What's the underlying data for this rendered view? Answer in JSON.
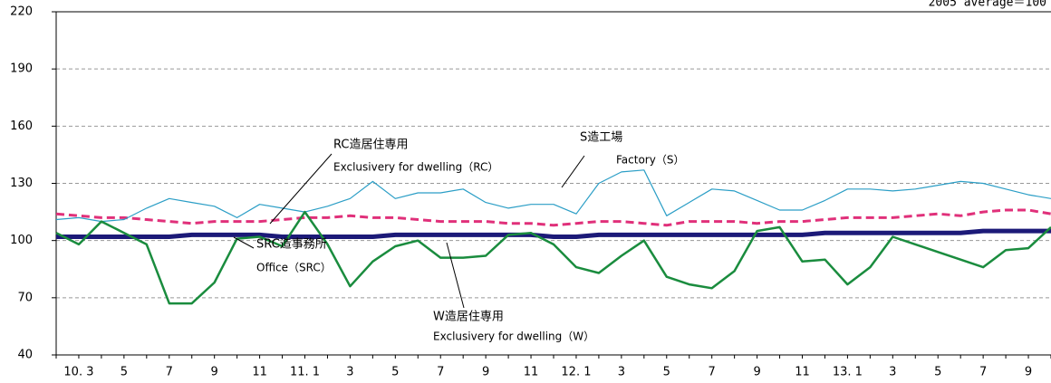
{
  "chart_data": {
    "type": "line",
    "note": "2005 average＝100",
    "categories": [
      null,
      "10. 3",
      null,
      "5",
      null,
      "7",
      null,
      "9",
      null,
      "11",
      null,
      "11. 1",
      null,
      "3",
      null,
      "5",
      null,
      "7",
      null,
      "9",
      null,
      "11",
      null,
      "12. 1",
      null,
      "3",
      null,
      "5",
      null,
      "7",
      null,
      "9",
      null,
      "11",
      null,
      "13. 1",
      null,
      "3",
      null,
      "5",
      null,
      "7",
      null,
      "9",
      null
    ],
    "ylim": [
      40,
      220
    ],
    "yticks": [
      40,
      70,
      100,
      130,
      160,
      190,
      220
    ],
    "grid": true,
    "series": [
      {
        "name": "S造工場",
        "name_en": "Factory（S）",
        "color": "#2b9ec6",
        "line_width": 1.2,
        "dash": false,
        "values": [
          111,
          112,
          110,
          111,
          117,
          122,
          120,
          118,
          112,
          119,
          117,
          115,
          118,
          122,
          131,
          122,
          125,
          125,
          127,
          120,
          117,
          119,
          119,
          114,
          130,
          136,
          137,
          113,
          120,
          127,
          126,
          121,
          116,
          116,
          121,
          127,
          127,
          126,
          127,
          129,
          131,
          130,
          127,
          124,
          122
        ]
      },
      {
        "name": "RC造居住専用",
        "name_en": "Exclusivery for dwelling（RC）",
        "color": "#e0307a",
        "line_width": 3,
        "dash": true,
        "values": [
          114,
          113,
          112,
          112,
          111,
          110,
          109,
          110,
          110,
          110,
          111,
          112,
          112,
          113,
          112,
          112,
          111,
          110,
          110,
          110,
          109,
          109,
          108,
          109,
          110,
          110,
          109,
          108,
          110,
          110,
          110,
          109,
          110,
          110,
          111,
          112,
          112,
          112,
          113,
          114,
          113,
          115,
          116,
          116,
          114
        ]
      },
      {
        "name": "SRC造事務所",
        "name_en": "Office（SRC）",
        "color": "#1c1a78",
        "line_width": 5,
        "dash": false,
        "values": [
          102,
          102,
          102,
          102,
          102,
          102,
          103,
          103,
          103,
          103,
          102,
          102,
          102,
          102,
          102,
          103,
          103,
          103,
          103,
          103,
          103,
          103,
          102,
          102,
          103,
          103,
          103,
          103,
          103,
          103,
          103,
          103,
          103,
          103,
          104,
          104,
          104,
          104,
          104,
          104,
          104,
          105,
          105,
          105,
          105
        ]
      },
      {
        "name": "W造居住専用",
        "name_en": "Exclusivery for dwelling（W）",
        "color": "#1a8c3e",
        "line_width": 2.5,
        "dash": false,
        "values": [
          104,
          98,
          110,
          104,
          98,
          67,
          67,
          78,
          101,
          102,
          97,
          115,
          98,
          76,
          89,
          97,
          100,
          91,
          91,
          92,
          103,
          104,
          98,
          86,
          83,
          92,
          100,
          81,
          77,
          75,
          84,
          105,
          107,
          89,
          90,
          77,
          86,
          102,
          98,
          94,
          90,
          86,
          95,
          96,
          107
        ]
      }
    ]
  }
}
